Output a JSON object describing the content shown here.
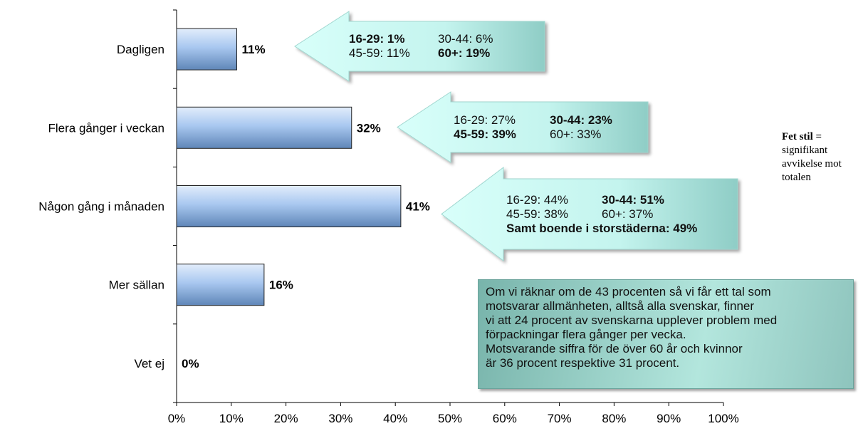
{
  "chart_data": {
    "type": "bar",
    "orientation": "horizontal",
    "categories": [
      "Dagligen",
      "Flera gånger i veckan",
      "Någon gång i månaden",
      "Mer sällan",
      "Vet ej"
    ],
    "values": [
      11,
      32,
      41,
      16,
      0
    ],
    "value_labels": [
      "11%",
      "32%",
      "41%",
      "16%",
      "0%"
    ],
    "title": "",
    "xlabel": "",
    "ylabel": "",
    "xlim": [
      0,
      100
    ],
    "x_ticks": [
      "0%",
      "10%",
      "20%",
      "30%",
      "40%",
      "50%",
      "60%",
      "70%",
      "80%",
      "90%",
      "100%"
    ],
    "grid": false,
    "bar_color": "#a9c8f0",
    "annotations": [
      {
        "category": "Dagligen",
        "rows": [
          [
            {
              "text": "16-29: 1%",
              "bold": true
            },
            {
              "text": "30-44: 6%",
              "bold": false
            }
          ],
          [
            {
              "text": "45-59: 11%",
              "bold": false
            },
            {
              "text": "60+: 19%",
              "bold": true
            }
          ]
        ]
      },
      {
        "category": "Flera gånger i veckan",
        "rows": [
          [
            {
              "text": "16-29: 27%",
              "bold": false
            },
            {
              "text": "30-44: 23%",
              "bold": true
            }
          ],
          [
            {
              "text": "45-59: 39%",
              "bold": true
            },
            {
              "text": "60+: 33%",
              "bold": false
            }
          ]
        ]
      },
      {
        "category": "Någon gång i månaden",
        "rows": [
          [
            {
              "text": "16-29: 44%",
              "bold": false
            },
            {
              "text": "30-44: 51%",
              "bold": true
            }
          ],
          [
            {
              "text": "45-59: 38%",
              "bold": false
            },
            {
              "text": "60+: 37%",
              "bold": false
            }
          ],
          [
            {
              "text": "Samt boende i storstäderna: 49%",
              "bold": true
            }
          ]
        ]
      }
    ]
  },
  "legend_note": {
    "title": "Fet stil =",
    "lines": [
      "signifikant",
      "avvikelse mot",
      "totalen"
    ]
  },
  "note_box": {
    "lines": [
      "Om vi räknar om de 43 procenten så vi får ett tal som",
      "motsvarar  allmänheten, alltså alla svenskar, finner",
      "vi att 24 procent av svenskarna upplever problem med",
      "förpackningar flera gånger per vecka.",
      "Motsvarande siffra för de över 60 år och kvinnor",
      "är 36 procent respektive 31 procent."
    ]
  },
  "colors": {
    "arrow_fill_light": "#ccfbf6",
    "arrow_fill_dark": "#8fcdc6",
    "note_fill": "#a6dbd3",
    "bar_light": "#c7dcf7",
    "bar_dark": "#5f86b8"
  }
}
